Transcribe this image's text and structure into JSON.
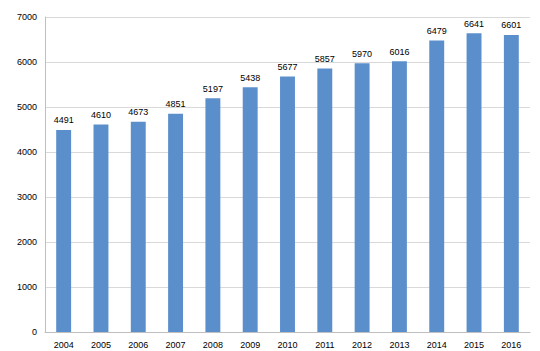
{
  "chart_data": {
    "type": "bar",
    "categories": [
      "2004",
      "2005",
      "2006",
      "2007",
      "2008",
      "2009",
      "2010",
      "2011",
      "2012",
      "2013",
      "2014",
      "2015",
      "2016"
    ],
    "values": [
      4491,
      4610,
      4673,
      4851,
      5197,
      5438,
      5677,
      5857,
      5970,
      6016,
      6479,
      6641,
      6601
    ],
    "color": "#5b8fcc",
    "ylim": [
      0,
      7000
    ],
    "yticks": [
      0,
      1000,
      2000,
      3000,
      4000,
      5000,
      6000,
      7000
    ],
    "grid": true,
    "data_labels": true
  }
}
